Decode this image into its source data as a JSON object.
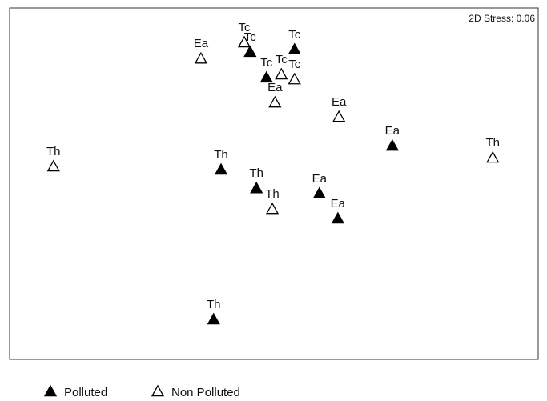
{
  "chart_data": {
    "type": "scatter",
    "annotation": "2D Stress: 0.06",
    "xlim": [
      0,
      100
    ],
    "ylim": [
      0,
      100
    ],
    "legend": "bottom",
    "series": [
      {
        "name": "Polluted",
        "color": "#000000",
        "marker": "filled-triangle",
        "labels": [
          "Tc",
          "Tc",
          "Tc",
          "Ea",
          "Th",
          "Th",
          "Ea",
          "Ea",
          "Th"
        ],
        "x": [
          45.5,
          53.9,
          48.6,
          72.4,
          40.0,
          46.7,
          58.6,
          62.1,
          38.6
        ],
        "y": [
          87.5,
          88.2,
          80.2,
          60.8,
          54.0,
          48.7,
          47.2,
          40.1,
          11.4
        ]
      },
      {
        "name": "Non Polluted",
        "color": "#000000",
        "marker": "open-triangle",
        "labels": [
          "Ea",
          "Tc",
          "Tc",
          "Tc",
          "Ea",
          "Ea",
          "Th",
          "Th",
          "Th"
        ],
        "x": [
          36.2,
          44.4,
          51.4,
          53.9,
          50.2,
          62.3,
          91.4,
          8.3,
          49.7
        ],
        "y": [
          85.6,
          90.2,
          81.1,
          79.7,
          73.1,
          69.0,
          57.4,
          54.9,
          42.8
        ]
      }
    ]
  }
}
